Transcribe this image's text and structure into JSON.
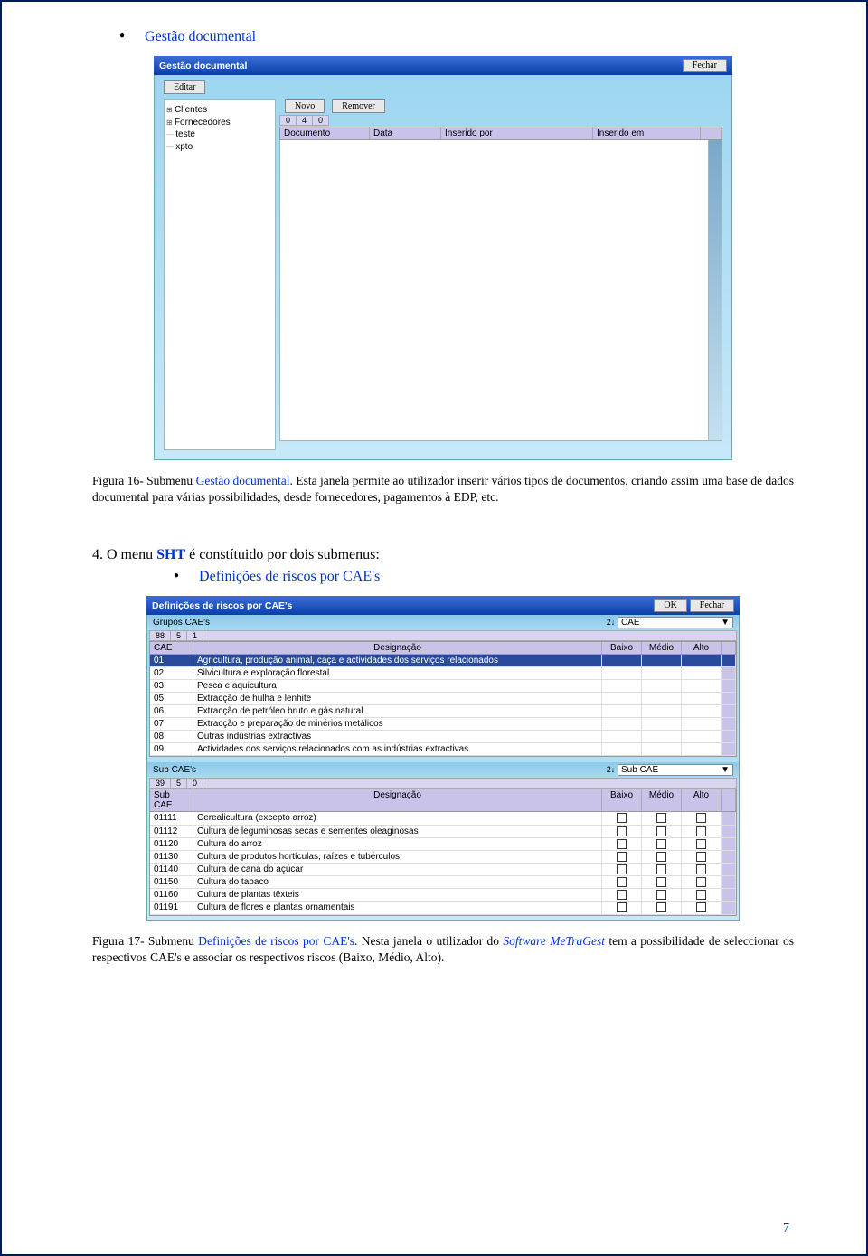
{
  "bullet1": "Gestão documental",
  "win1": {
    "title": "Gestão documental",
    "close": "Fechar",
    "edit": "Editar",
    "tree": [
      "Clientes",
      "Fornecedores",
      "teste",
      "xpto"
    ],
    "btnNew": "Novo",
    "btnRemove": "Remover",
    "stat0": "0",
    "stat4": "4",
    "stat0b": "0",
    "colDoc": "Documento",
    "colData": "Data",
    "colInsPor": "Inserido por",
    "colInsEm": "Inserido em"
  },
  "caption1_pre": "Figura 16- Submenu ",
  "caption1_link": "Gestão documental",
  "caption1_post": ". Esta janela permite ao utilizador inserir vários tipos de documentos, criando assim uma base de dados documental para várias possibilidades, desde fornecedores, pagamentos à EDP, etc.",
  "section4": "4.   O menu ",
  "section4_b": "SHT",
  "section4_post": " é constítuido por dois  submenus:",
  "bullet2": "Definições de riscos por CAE's",
  "win2": {
    "title": "Definições de riscos por CAE's",
    "ok": "OK",
    "close": "Fechar",
    "grupos": "Grupos CAE's",
    "sort": "⤢",
    "dd1": "CAE",
    "s88": "88",
    "s5": "5",
    "s1": "1",
    "hCAE": "CAE",
    "hDesig": "Designação",
    "hBaixo": "Baixo",
    "hMedio": "Médio",
    "hAlto": "Alto",
    "rows1": [
      {
        "c": "01",
        "d": "Agricultura, produção animal, caça e actividades dos serviços relacionados",
        "sel": true
      },
      {
        "c": "02",
        "d": "Silvicultura e exploração florestal"
      },
      {
        "c": "03",
        "d": "Pesca e aquicultura"
      },
      {
        "c": "05",
        "d": "Extracção de hulha e lenhite"
      },
      {
        "c": "06",
        "d": "Extracção de petróleo bruto e gás natural"
      },
      {
        "c": "07",
        "d": "Extracção e preparação de minérios metálicos"
      },
      {
        "c": "08",
        "d": "Outras indústrias extractivas"
      },
      {
        "c": "09",
        "d": "Actividades dos serviços relacionados com as indústrias extractivas"
      }
    ],
    "sub": "Sub CAE's",
    "dd2": "Sub CAE",
    "s39": "39",
    "s5b": "5",
    "s0": "0",
    "hSub": "Sub CAE",
    "rows2": [
      {
        "c": "01111",
        "d": "Cerealicultura (excepto arroz)"
      },
      {
        "c": "01112",
        "d": "Cultura de leguminosas secas e sementes oleaginosas"
      },
      {
        "c": "01120",
        "d": "Cultura do arroz"
      },
      {
        "c": "01130",
        "d": "Cultura de produtos hortículas, raízes e tubérculos"
      },
      {
        "c": "01140",
        "d": "Cultura de cana do açúcar"
      },
      {
        "c": "01150",
        "d": "Cultura do tabaco"
      },
      {
        "c": "01160",
        "d": "Cultura de plantas têxteis"
      },
      {
        "c": "01191",
        "d": "Cultura de flores e plantas ornamentais"
      }
    ]
  },
  "caption2_pre": "Figura 17- Submenu ",
  "caption2_link": "Definições de riscos por CAE's",
  "caption2_mid": ". Nesta janela o utilizador do ",
  "caption2_sw": "Software MeTraGest",
  "caption2_post": " tem a possibilidade de seleccionar os respectivos CAE's e associar os respectivos riscos (Baixo, Médio, Alto).",
  "page": "7"
}
